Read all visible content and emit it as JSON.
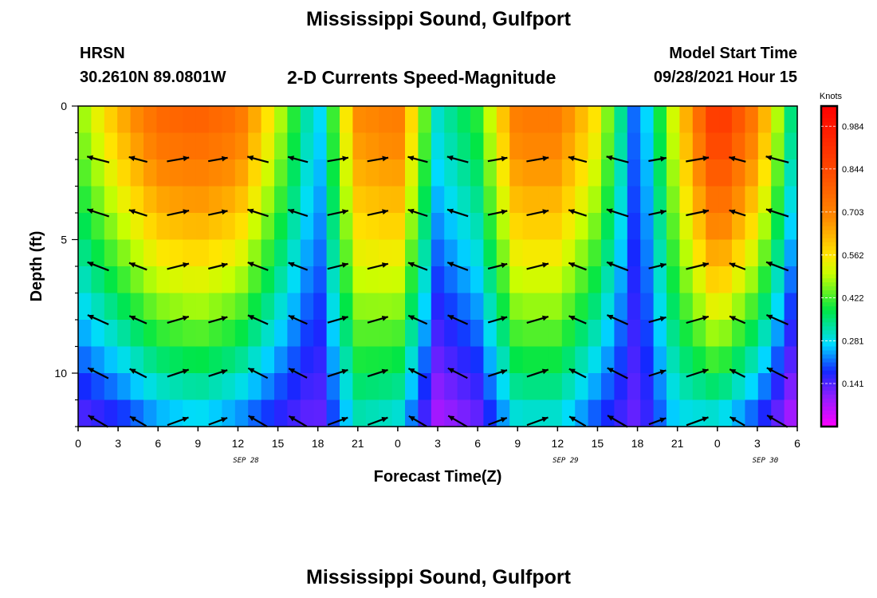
{
  "header": {
    "title": "Mississippi Sound, Gulfport",
    "station": "HRSN",
    "coords": "30.2610N  89.0801W",
    "subtitle": "2-D Currents Speed-Magnitude",
    "model_start_label": "Model Start Time",
    "model_start_value": "09/28/2021 Hour 15"
  },
  "footer": {
    "title": "Mississippi Sound, Gulfport"
  },
  "chart_data": {
    "type": "heatmap",
    "xlabel": "Forecast Time(Z)",
    "ylabel": "Depth (ft)",
    "x_ticks": [
      "0",
      "3",
      "6",
      "9",
      "12",
      "15",
      "18",
      "21",
      "0",
      "3",
      "6",
      "9",
      "12",
      "15",
      "18",
      "21",
      "0",
      "3",
      "6"
    ],
    "date_labels": [
      {
        "label": "SEP 28",
        "tick_index": 4.2
      },
      {
        "label": "SEP 29",
        "tick_index": 12.2
      },
      {
        "label": "SEP 30",
        "tick_index": 17.2
      }
    ],
    "y_ticks": [
      0,
      5,
      10
    ],
    "ylim": [
      0,
      12
    ],
    "y_inverted": true,
    "colorbar": {
      "unit": "Knots",
      "ticks": [
        0.141,
        0.281,
        0.422,
        0.562,
        0.703,
        0.844,
        0.984
      ],
      "range": [
        0.0,
        1.05
      ]
    },
    "speed_profile": {
      "description_x": "speed at surface vs forecast hour index (0..54h)",
      "hours": [
        0,
        3,
        6,
        9,
        12,
        15,
        18,
        21,
        24,
        27,
        30,
        33,
        36,
        39,
        42,
        45,
        48,
        51,
        54
      ],
      "surface_speed_knots": [
        0.45,
        0.62,
        0.76,
        0.78,
        0.74,
        0.5,
        0.25,
        0.68,
        0.72,
        0.3,
        0.4,
        0.72,
        0.72,
        0.55,
        0.18,
        0.55,
        0.92,
        0.7,
        0.28
      ],
      "deep_speed_knots": [
        0.14,
        0.18,
        0.25,
        0.28,
        0.24,
        0.17,
        0.12,
        0.32,
        0.3,
        0.08,
        0.13,
        0.3,
        0.3,
        0.2,
        0.12,
        0.28,
        0.3,
        0.2,
        0.06
      ]
    }
  }
}
